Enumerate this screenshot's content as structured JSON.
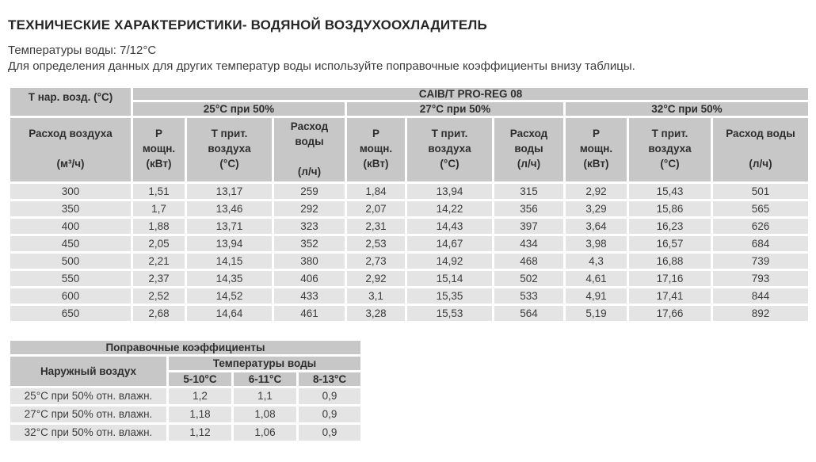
{
  "page": {
    "title": "ТЕХНИЧЕСКИЕ ХАРАКТЕРИСТИКИ- ВОДЯНОЙ ВОЗДУХООХЛАДИТЕЛЬ",
    "subtitle_water_temp": "Температуры воды: 7/12°С",
    "subtitle_note": "Для определения данных для других температур воды используйте поправочные коэффициенты внизу таблицы."
  },
  "colors": {
    "header_bg": "#c7c7c7",
    "row_bg": "#e4e4e4",
    "text": "#3c3c3c",
    "title_text": "#262626"
  },
  "main_table": {
    "corner_header": "Т нар. возд. (°С)",
    "model_header": "CAIB/T PRO-REG 08",
    "groups": [
      "25°С при 50%",
      "27°С при 50%",
      "32°С при 50%"
    ],
    "airflow_header": "Расход воздуха\n\n(м³/ч)",
    "col_headers": [
      "Р\nмощн.\n(кВт)",
      "Т прит.\nвоздуха\n(°С)",
      "Расход воды\n\n(л/ч)",
      "Р\nмощн.\n(кВт)",
      "Т прит.\nвоздуха\n(°С)",
      "Расход\nводы\n(л/ч)",
      "Р\nмощн.\n(кВт)",
      "Т прит.\nвоздуха\n(°С)",
      "Расход воды\n\n(л/ч)"
    ],
    "rows": [
      {
        "airflow": "300",
        "values": [
          "1,51",
          "13,17",
          "259",
          "1,84",
          "13,94",
          "315",
          "2,92",
          "15,43",
          "501"
        ]
      },
      {
        "airflow": "350",
        "values": [
          "1,7",
          "13,46",
          "292",
          "2,07",
          "14,22",
          "356",
          "3,29",
          "15,86",
          "565"
        ]
      },
      {
        "airflow": "400",
        "values": [
          "1,88",
          "13,71",
          "323",
          "2,31",
          "14,43",
          "397",
          "3,64",
          "16,23",
          "626"
        ]
      },
      {
        "airflow": "450",
        "values": [
          "2,05",
          "13,94",
          "352",
          "2,53",
          "14,67",
          "434",
          "3,98",
          "16,57",
          "684"
        ]
      },
      {
        "airflow": "500",
        "values": [
          "2,21",
          "14,15",
          "380",
          "2,73",
          "14,92",
          "468",
          "4,3",
          "16,88",
          "739"
        ]
      },
      {
        "airflow": "550",
        "values": [
          "2,37",
          "14,35",
          "406",
          "2,92",
          "15,14",
          "502",
          "4,61",
          "17,16",
          "793"
        ]
      },
      {
        "airflow": "600",
        "values": [
          "2,52",
          "14,52",
          "433",
          "3,1",
          "15,35",
          "533",
          "4,91",
          "17,41",
          "844"
        ]
      },
      {
        "airflow": "650",
        "values": [
          "2,68",
          "14,64",
          "461",
          "3,28",
          "15,53",
          "564",
          "5,19",
          "17,66",
          "892"
        ]
      }
    ]
  },
  "coeff_table": {
    "title": "Поправочные коэффициенты",
    "row_header": "Наружный воздух",
    "group_header": "Температуры воды",
    "col_headers": [
      "5-10°С",
      "6-11°С",
      "8-13°С"
    ],
    "rows": [
      {
        "label": "25°С при 50% отн. влажн.",
        "values": [
          "1,2",
          "1,1",
          "0,9"
        ]
      },
      {
        "label": "27°С при 50% отн. влажн.",
        "values": [
          "1,18",
          "1,08",
          "0,9"
        ]
      },
      {
        "label": "32°С при 50% отн. влажн.",
        "values": [
          "1,12",
          "1,06",
          "0,9"
        ]
      }
    ]
  }
}
